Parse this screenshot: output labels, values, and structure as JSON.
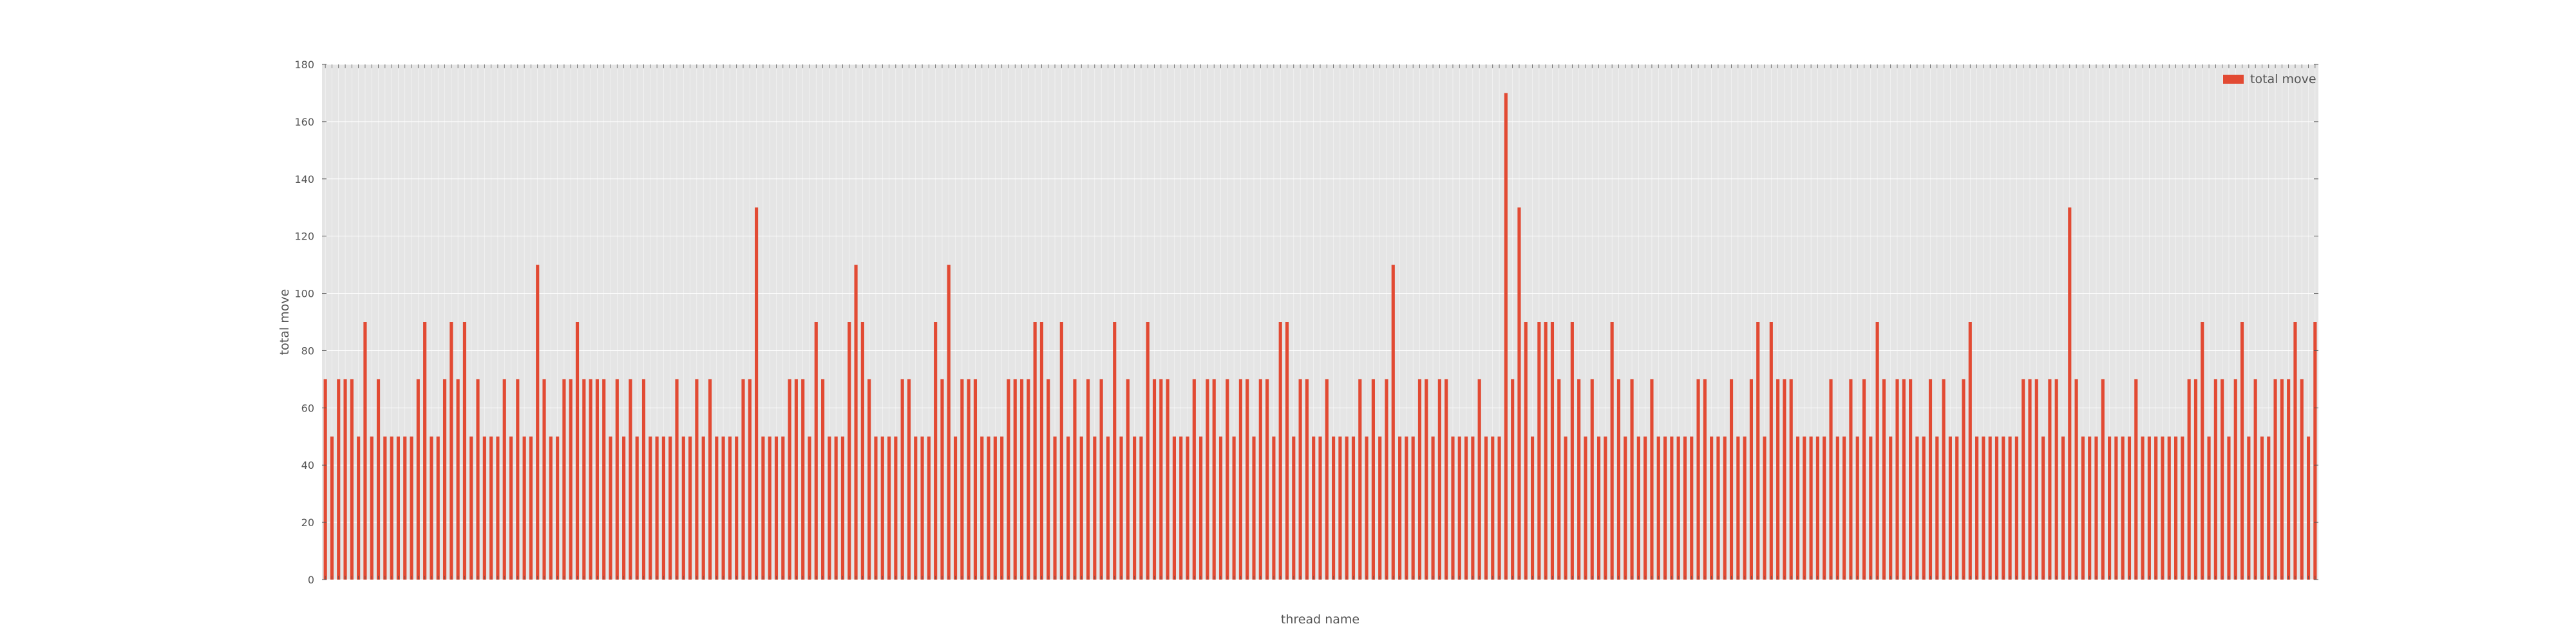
{
  "chart_data": {
    "type": "bar",
    "title": "",
    "xlabel": "thread name",
    "ylabel": "total move",
    "ylim": [
      0,
      180
    ],
    "yticks": [
      0,
      20,
      40,
      60,
      80,
      100,
      120,
      140,
      160,
      180
    ],
    "grid": true,
    "legend_position": "top-right",
    "series": [
      {
        "name": "total move",
        "color": "#e24a33",
        "values": [
          70,
          50,
          70,
          70,
          70,
          50,
          90,
          50,
          70,
          50,
          50,
          50,
          50,
          50,
          70,
          90,
          50,
          50,
          70,
          90,
          70,
          90,
          50,
          70,
          50,
          50,
          50,
          70,
          50,
          70,
          50,
          50,
          110,
          70,
          50,
          50,
          70,
          70,
          90,
          70,
          70,
          70,
          70,
          50,
          70,
          50,
          70,
          50,
          70,
          50,
          50,
          50,
          50,
          70,
          50,
          50,
          70,
          50,
          70,
          50,
          50,
          50,
          50,
          70,
          70,
          130,
          50,
          50,
          50,
          50,
          70,
          70,
          70,
          50,
          90,
          70,
          50,
          50,
          50,
          90,
          110,
          90,
          70,
          50,
          50,
          50,
          50,
          70,
          70,
          50,
          50,
          50,
          90,
          70,
          110,
          50,
          70,
          70,
          70,
          50,
          50,
          50,
          50,
          70,
          70,
          70,
          70,
          90,
          90,
          70,
          50,
          90,
          50,
          70,
          50,
          70,
          50,
          70,
          50,
          90,
          50,
          70,
          50,
          50,
          90,
          70,
          70,
          70,
          50,
          50,
          50,
          70,
          50,
          70,
          70,
          50,
          70,
          50,
          70,
          70,
          50,
          70,
          70,
          50,
          90,
          90,
          50,
          70,
          70,
          50,
          50,
          70,
          50,
          50,
          50,
          50,
          70,
          50,
          70,
          50,
          70,
          110,
          50,
          50,
          50,
          70,
          70,
          50,
          70,
          70,
          50,
          50,
          50,
          50,
          70,
          50,
          50,
          50,
          170,
          70,
          130,
          90,
          50,
          90,
          90,
          90,
          70,
          50,
          90,
          70,
          50,
          70,
          50,
          50,
          90,
          70,
          50,
          70,
          50,
          50,
          70,
          50,
          50,
          50,
          50,
          50,
          50,
          70,
          70,
          50,
          50,
          50,
          70,
          50,
          50,
          70,
          90,
          50,
          90,
          70,
          70,
          70,
          50,
          50,
          50,
          50,
          50,
          70,
          50,
          50,
          70,
          50,
          70,
          50,
          90,
          70,
          50,
          70,
          70,
          70,
          50,
          50,
          70,
          50,
          70,
          50,
          50,
          70,
          90,
          50,
          50,
          50,
          50,
          50,
          50,
          50,
          70,
          70,
          70,
          50,
          70,
          70,
          50,
          130,
          70,
          50,
          50,
          50,
          70,
          50,
          50,
          50,
          50,
          70,
          50,
          50,
          50,
          50,
          50,
          50,
          50,
          70,
          70,
          90,
          50,
          70,
          70,
          50,
          70,
          90,
          50,
          70,
          50,
          50,
          70,
          70,
          70,
          90,
          70,
          50,
          90
        ]
      }
    ]
  }
}
